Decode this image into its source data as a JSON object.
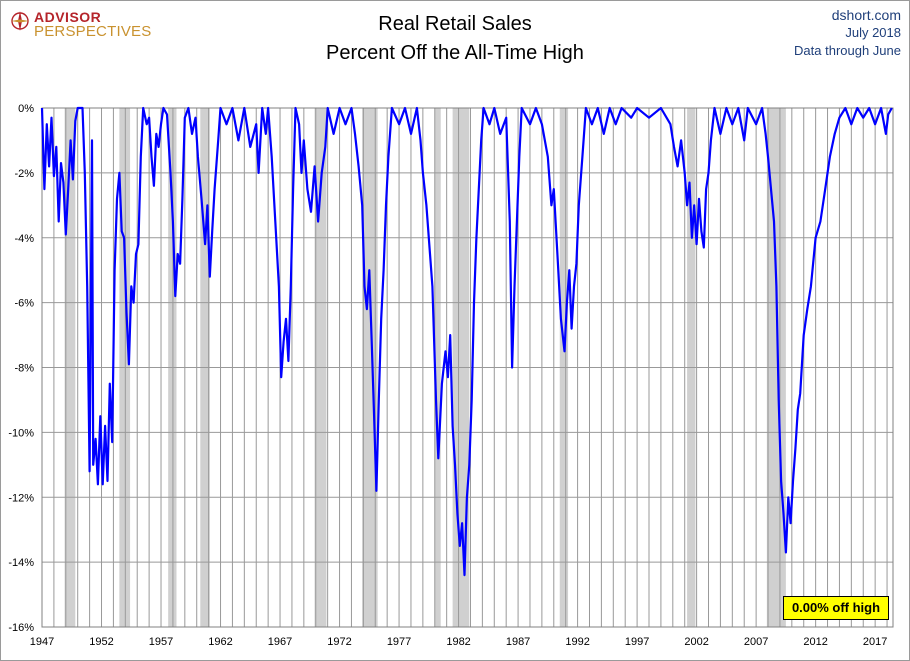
{
  "header": {
    "logo_top": "ADVISOR",
    "logo_bottom": "PERSPECTIVES",
    "title_line1": "Real Retail Sales",
    "title_line2": "Percent Off the All-Time High",
    "source": "dshort.com",
    "date": "July 2018",
    "data_note": "Data through June"
  },
  "badge_label": "0.00% off high",
  "colors": {
    "series": "#0000ff",
    "recession": "#d0d0d0",
    "grid": "#999999",
    "title_text": "#000000",
    "source_text": "#1f3f7a",
    "badge": "#ffff00"
  },
  "chart_data": {
    "type": "line",
    "title": "Real Retail Sales — Percent Off the All-Time High",
    "xlabel": "",
    "ylabel": "",
    "xlim": [
      1947,
      2018.5
    ],
    "ylim": [
      -16,
      0
    ],
    "x_ticks": [
      "1947",
      "1952",
      "1957",
      "1962",
      "1967",
      "1972",
      "1977",
      "1982",
      "1987",
      "1992",
      "1997",
      "2002",
      "2007",
      "2012",
      "2017"
    ],
    "y_ticks": [
      "0%",
      "-2%",
      "-4%",
      "-6%",
      "-8%",
      "-10%",
      "-12%",
      "-14%",
      "-16%"
    ],
    "recessions": [
      [
        1948.9,
        1949.8
      ],
      [
        1953.5,
        1954.4
      ],
      [
        1957.6,
        1958.3
      ],
      [
        1960.3,
        1961.1
      ],
      [
        1969.9,
        1970.9
      ],
      [
        1973.9,
        1975.2
      ],
      [
        1980.0,
        1980.5
      ],
      [
        1981.5,
        1982.9
      ],
      [
        1990.5,
        1991.2
      ],
      [
        2001.2,
        2001.9
      ],
      [
        2007.9,
        2009.5
      ]
    ],
    "series": [
      {
        "values": [
          [
            1947.0,
            0
          ],
          [
            1947.2,
            -2.5
          ],
          [
            1947.4,
            -0.5
          ],
          [
            1947.6,
            -1.8
          ],
          [
            1947.8,
            -0.3
          ],
          [
            1948.0,
            -2.1
          ],
          [
            1948.2,
            -1.2
          ],
          [
            1948.4,
            -3.5
          ],
          [
            1948.6,
            -1.7
          ],
          [
            1948.8,
            -2.3
          ],
          [
            1949.0,
            -3.9
          ],
          [
            1949.2,
            -2.5
          ],
          [
            1949.4,
            -1.0
          ],
          [
            1949.6,
            -2.2
          ],
          [
            1949.8,
            -0.4
          ],
          [
            1950.0,
            0
          ],
          [
            1950.2,
            0
          ],
          [
            1950.4,
            0
          ],
          [
            1950.6,
            -2.0
          ],
          [
            1950.8,
            -5.5
          ],
          [
            1951.0,
            -11.2
          ],
          [
            1951.2,
            -1.0
          ],
          [
            1951.3,
            -11.0
          ],
          [
            1951.5,
            -10.2
          ],
          [
            1951.7,
            -11.6
          ],
          [
            1951.9,
            -9.5
          ],
          [
            1952.1,
            -11.6
          ],
          [
            1952.3,
            -9.8
          ],
          [
            1952.5,
            -11.5
          ],
          [
            1952.7,
            -8.5
          ],
          [
            1952.9,
            -10.3
          ],
          [
            1953.1,
            -5.0
          ],
          [
            1953.3,
            -2.8
          ],
          [
            1953.5,
            -2.0
          ],
          [
            1953.7,
            -3.8
          ],
          [
            1953.9,
            -4.0
          ],
          [
            1954.1,
            -6.3
          ],
          [
            1954.3,
            -7.9
          ],
          [
            1954.5,
            -5.5
          ],
          [
            1954.7,
            -6.0
          ],
          [
            1954.9,
            -4.5
          ],
          [
            1955.1,
            -4.2
          ],
          [
            1955.3,
            -1.5
          ],
          [
            1955.5,
            0
          ],
          [
            1955.8,
            -0.5
          ],
          [
            1956.0,
            -0.3
          ],
          [
            1956.2,
            -1.5
          ],
          [
            1956.4,
            -2.4
          ],
          [
            1956.6,
            -0.8
          ],
          [
            1956.8,
            -1.2
          ],
          [
            1957.0,
            -0.5
          ],
          [
            1957.2,
            0
          ],
          [
            1957.5,
            -0.2
          ],
          [
            1957.8,
            -2.0
          ],
          [
            1958.0,
            -3.5
          ],
          [
            1958.2,
            -5.8
          ],
          [
            1958.4,
            -4.5
          ],
          [
            1958.6,
            -4.8
          ],
          [
            1958.8,
            -2.8
          ],
          [
            1959.0,
            -0.3
          ],
          [
            1959.3,
            0
          ],
          [
            1959.6,
            -0.8
          ],
          [
            1959.9,
            -0.3
          ],
          [
            1960.1,
            -1.5
          ],
          [
            1960.4,
            -2.8
          ],
          [
            1960.7,
            -4.2
          ],
          [
            1960.9,
            -3.0
          ],
          [
            1961.1,
            -5.2
          ],
          [
            1961.3,
            -3.8
          ],
          [
            1961.5,
            -2.5
          ],
          [
            1961.8,
            -1.0
          ],
          [
            1962.0,
            0
          ],
          [
            1962.5,
            -0.5
          ],
          [
            1963.0,
            0
          ],
          [
            1963.5,
            -1.0
          ],
          [
            1964.0,
            0
          ],
          [
            1964.5,
            -1.2
          ],
          [
            1965.0,
            -0.5
          ],
          [
            1965.2,
            -2.0
          ],
          [
            1965.5,
            0
          ],
          [
            1965.8,
            -0.8
          ],
          [
            1966.0,
            0
          ],
          [
            1966.3,
            -1.5
          ],
          [
            1966.6,
            -3.5
          ],
          [
            1966.9,
            -5.5
          ],
          [
            1967.1,
            -8.3
          ],
          [
            1967.3,
            -7.2
          ],
          [
            1967.5,
            -6.5
          ],
          [
            1967.7,
            -7.8
          ],
          [
            1967.9,
            -5.5
          ],
          [
            1968.1,
            -2.5
          ],
          [
            1968.3,
            0
          ],
          [
            1968.6,
            -0.5
          ],
          [
            1968.8,
            -2.0
          ],
          [
            1969.0,
            -1.0
          ],
          [
            1969.3,
            -2.5
          ],
          [
            1969.6,
            -3.2
          ],
          [
            1969.9,
            -1.8
          ],
          [
            1970.2,
            -3.5
          ],
          [
            1970.5,
            -2.0
          ],
          [
            1970.8,
            -1.2
          ],
          [
            1971.0,
            0
          ],
          [
            1971.5,
            -0.8
          ],
          [
            1972.0,
            0
          ],
          [
            1972.5,
            -0.5
          ],
          [
            1973.0,
            0
          ],
          [
            1973.3,
            -0.8
          ],
          [
            1973.6,
            -1.8
          ],
          [
            1973.9,
            -3.0
          ],
          [
            1974.1,
            -5.5
          ],
          [
            1974.3,
            -6.2
          ],
          [
            1974.5,
            -5.0
          ],
          [
            1974.7,
            -7.2
          ],
          [
            1974.9,
            -9.5
          ],
          [
            1975.1,
            -11.8
          ],
          [
            1975.3,
            -9.0
          ],
          [
            1975.5,
            -6.5
          ],
          [
            1975.7,
            -5.0
          ],
          [
            1975.9,
            -3.0
          ],
          [
            1976.1,
            -1.5
          ],
          [
            1976.4,
            0
          ],
          [
            1977.0,
            -0.5
          ],
          [
            1977.5,
            0
          ],
          [
            1978.0,
            -0.8
          ],
          [
            1978.5,
            0
          ],
          [
            1978.8,
            -1.0
          ],
          [
            1979.0,
            -2.0
          ],
          [
            1979.3,
            -3.0
          ],
          [
            1979.5,
            -4.0
          ],
          [
            1979.8,
            -5.5
          ],
          [
            1980.1,
            -9.0
          ],
          [
            1980.3,
            -10.8
          ],
          [
            1980.6,
            -8.5
          ],
          [
            1980.9,
            -7.5
          ],
          [
            1981.1,
            -8.3
          ],
          [
            1981.3,
            -7.0
          ],
          [
            1981.5,
            -9.8
          ],
          [
            1981.7,
            -11.0
          ],
          [
            1981.9,
            -12.5
          ],
          [
            1982.1,
            -13.5
          ],
          [
            1982.3,
            -12.8
          ],
          [
            1982.5,
            -14.4
          ],
          [
            1982.7,
            -12.0
          ],
          [
            1982.9,
            -11.0
          ],
          [
            1983.1,
            -9.0
          ],
          [
            1983.3,
            -6.0
          ],
          [
            1983.5,
            -4.0
          ],
          [
            1983.7,
            -2.5
          ],
          [
            1983.9,
            -1.0
          ],
          [
            1984.1,
            0
          ],
          [
            1984.6,
            -0.5
          ],
          [
            1985.0,
            0
          ],
          [
            1985.5,
            -0.8
          ],
          [
            1986.0,
            -0.3
          ],
          [
            1986.3,
            -3.5
          ],
          [
            1986.5,
            -8.0
          ],
          [
            1986.7,
            -5.5
          ],
          [
            1986.9,
            -3.5
          ],
          [
            1987.1,
            -1.5
          ],
          [
            1987.3,
            0
          ],
          [
            1988.0,
            -0.5
          ],
          [
            1988.5,
            0
          ],
          [
            1989.0,
            -0.5
          ],
          [
            1989.5,
            -1.5
          ],
          [
            1989.8,
            -3.0
          ],
          [
            1990.0,
            -2.5
          ],
          [
            1990.3,
            -4.5
          ],
          [
            1990.6,
            -6.5
          ],
          [
            1990.9,
            -7.5
          ],
          [
            1991.1,
            -6.0
          ],
          [
            1991.3,
            -5.0
          ],
          [
            1991.5,
            -6.8
          ],
          [
            1991.7,
            -5.5
          ],
          [
            1991.9,
            -4.8
          ],
          [
            1992.1,
            -3.0
          ],
          [
            1992.4,
            -1.5
          ],
          [
            1992.7,
            0
          ],
          [
            1993.2,
            -0.5
          ],
          [
            1993.7,
            0
          ],
          [
            1994.2,
            -0.8
          ],
          [
            1994.7,
            0
          ],
          [
            1995.2,
            -0.5
          ],
          [
            1995.7,
            0
          ],
          [
            1996.5,
            -0.3
          ],
          [
            1997.0,
            0
          ],
          [
            1998.0,
            -0.3
          ],
          [
            1999.0,
            0
          ],
          [
            1999.8,
            -0.5
          ],
          [
            2000.1,
            -1.2
          ],
          [
            2000.4,
            -1.8
          ],
          [
            2000.7,
            -1.0
          ],
          [
            2001.0,
            -2.0
          ],
          [
            2001.2,
            -3.0
          ],
          [
            2001.4,
            -2.3
          ],
          [
            2001.6,
            -4.0
          ],
          [
            2001.8,
            -3.0
          ],
          [
            2002.0,
            -4.2
          ],
          [
            2002.2,
            -2.8
          ],
          [
            2002.4,
            -3.8
          ],
          [
            2002.6,
            -4.3
          ],
          [
            2002.8,
            -2.5
          ],
          [
            2003.0,
            -2.0
          ],
          [
            2003.2,
            -1.0
          ],
          [
            2003.5,
            0
          ],
          [
            2004.0,
            -0.8
          ],
          [
            2004.5,
            0
          ],
          [
            2005.0,
            -0.5
          ],
          [
            2005.5,
            0
          ],
          [
            2006.0,
            -1.0
          ],
          [
            2006.3,
            0
          ],
          [
            2007.0,
            -0.5
          ],
          [
            2007.5,
            0
          ],
          [
            2007.8,
            -0.8
          ],
          [
            2008.0,
            -1.5
          ],
          [
            2008.3,
            -2.7
          ],
          [
            2008.5,
            -3.5
          ],
          [
            2008.7,
            -5.5
          ],
          [
            2008.9,
            -9.0
          ],
          [
            2009.1,
            -11.5
          ],
          [
            2009.3,
            -12.5
          ],
          [
            2009.5,
            -13.7
          ],
          [
            2009.7,
            -12.0
          ],
          [
            2009.9,
            -12.8
          ],
          [
            2010.1,
            -11.5
          ],
          [
            2010.3,
            -10.5
          ],
          [
            2010.5,
            -9.3
          ],
          [
            2010.7,
            -8.8
          ],
          [
            2011.0,
            -7.0
          ],
          [
            2011.3,
            -6.2
          ],
          [
            2011.6,
            -5.5
          ],
          [
            2012.0,
            -4.0
          ],
          [
            2012.4,
            -3.5
          ],
          [
            2012.8,
            -2.5
          ],
          [
            2013.2,
            -1.5
          ],
          [
            2013.6,
            -0.8
          ],
          [
            2014.0,
            -0.3
          ],
          [
            2014.5,
            0
          ],
          [
            2015.0,
            -0.5
          ],
          [
            2015.5,
            0
          ],
          [
            2016.0,
            -0.3
          ],
          [
            2016.5,
            0
          ],
          [
            2017.0,
            -0.5
          ],
          [
            2017.5,
            0
          ],
          [
            2017.9,
            -0.8
          ],
          [
            2018.1,
            -0.2
          ],
          [
            2018.4,
            0
          ]
        ]
      }
    ]
  }
}
